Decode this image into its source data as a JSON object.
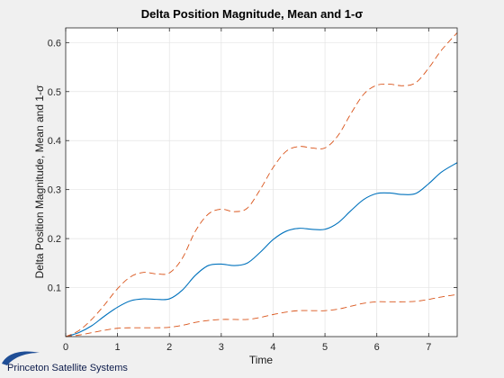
{
  "chart_data": {
    "type": "line",
    "title": "Delta Position Magnitude, Mean and 1-σ",
    "xlabel": "Time",
    "ylabel": "Delta Position Magnitude, Mean and 1-σ",
    "xlim": [
      0,
      7.55
    ],
    "ylim": [
      0,
      0.63
    ],
    "x_ticks": [
      0,
      1,
      2,
      3,
      4,
      5,
      6,
      7
    ],
    "y_ticks": [
      0.1,
      0.2,
      0.3,
      0.4,
      0.5,
      0.6
    ],
    "grid": true,
    "series": [
      {
        "role": "mean",
        "color": "#0072bd",
        "dash": "solid",
        "x": [
          0,
          0.25,
          0.5,
          0.75,
          1.0,
          1.25,
          1.5,
          1.75,
          2.0,
          2.25,
          2.5,
          2.75,
          3.0,
          3.25,
          3.5,
          3.75,
          4.0,
          4.25,
          4.5,
          4.75,
          5.0,
          5.25,
          5.5,
          5.75,
          6.0,
          6.25,
          6.5,
          6.75,
          7.0,
          7.25,
          7.55
        ],
        "values": [
          0,
          0.008,
          0.022,
          0.042,
          0.06,
          0.073,
          0.077,
          0.076,
          0.077,
          0.095,
          0.125,
          0.145,
          0.148,
          0.145,
          0.15,
          0.172,
          0.198,
          0.215,
          0.221,
          0.219,
          0.219,
          0.232,
          0.257,
          0.28,
          0.292,
          0.293,
          0.29,
          0.292,
          0.312,
          0.336,
          0.355
        ]
      },
      {
        "role": "mean + 1-σ",
        "color": "#d95319",
        "dash": "dashed",
        "x": [
          0,
          0.25,
          0.5,
          0.75,
          1.0,
          1.25,
          1.5,
          1.75,
          2.0,
          2.25,
          2.5,
          2.75,
          3.0,
          3.25,
          3.5,
          3.75,
          4.0,
          4.25,
          4.5,
          4.75,
          5.0,
          5.25,
          5.5,
          5.75,
          6.0,
          6.25,
          6.5,
          6.75,
          7.0,
          7.25,
          7.55
        ],
        "values": [
          0,
          0.012,
          0.035,
          0.065,
          0.098,
          0.122,
          0.131,
          0.128,
          0.13,
          0.16,
          0.215,
          0.25,
          0.26,
          0.255,
          0.262,
          0.3,
          0.345,
          0.378,
          0.388,
          0.385,
          0.385,
          0.41,
          0.455,
          0.495,
          0.513,
          0.515,
          0.512,
          0.518,
          0.548,
          0.585,
          0.62
        ]
      },
      {
        "role": "mean - 1-σ",
        "color": "#d95319",
        "dash": "dashed",
        "x": [
          0,
          0.25,
          0.5,
          0.75,
          1.0,
          1.25,
          1.5,
          1.75,
          2.0,
          2.25,
          2.5,
          2.75,
          3.0,
          3.25,
          3.5,
          3.75,
          4.0,
          4.25,
          4.5,
          4.75,
          5.0,
          5.25,
          5.5,
          5.75,
          6.0,
          6.25,
          6.5,
          6.75,
          7.0,
          7.25,
          7.55
        ],
        "values": [
          0,
          0.003,
          0.008,
          0.013,
          0.017,
          0.018,
          0.018,
          0.018,
          0.019,
          0.023,
          0.029,
          0.033,
          0.035,
          0.035,
          0.035,
          0.039,
          0.045,
          0.05,
          0.053,
          0.053,
          0.053,
          0.056,
          0.062,
          0.068,
          0.071,
          0.071,
          0.071,
          0.072,
          0.076,
          0.081,
          0.086
        ]
      }
    ]
  },
  "branding": {
    "logo_text": "Princeton Satellite Systems",
    "logo_color": "#1f4e96"
  }
}
